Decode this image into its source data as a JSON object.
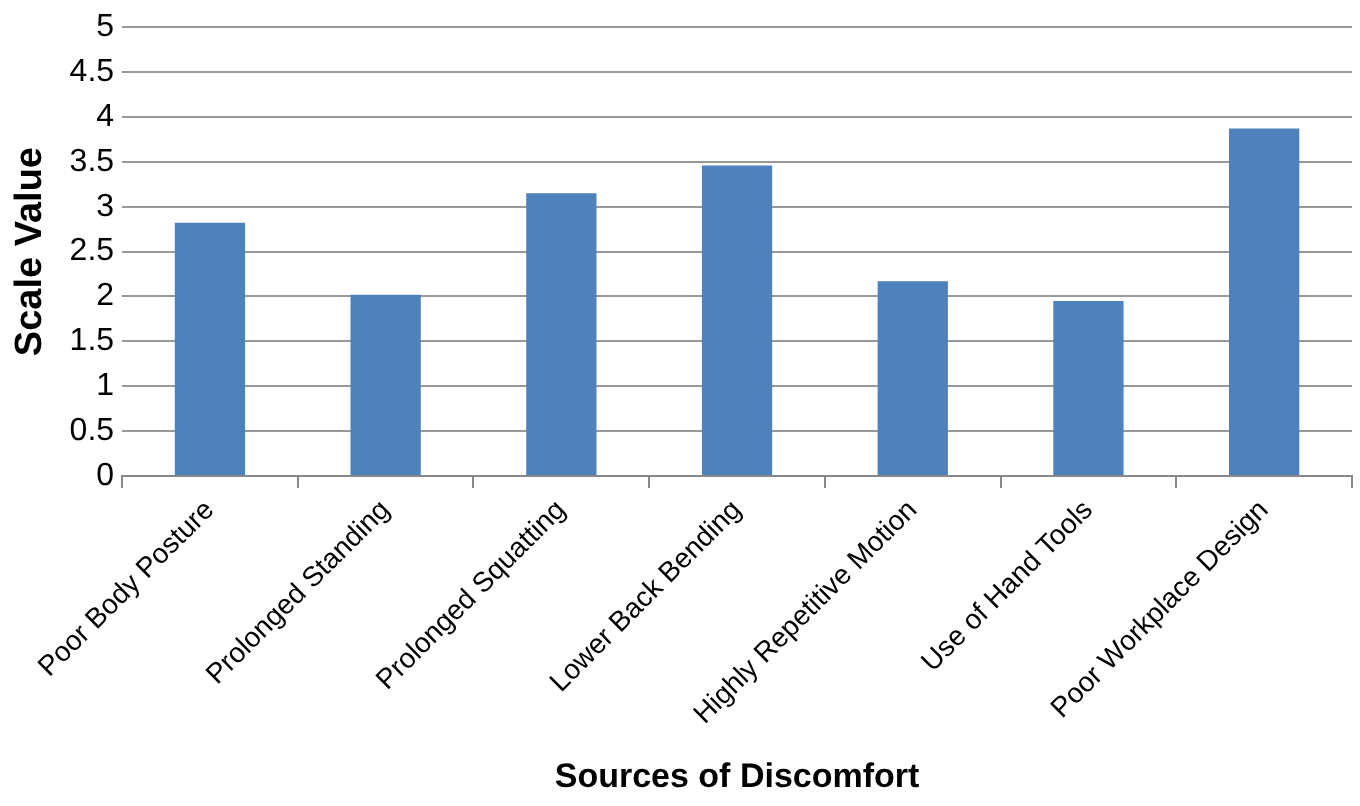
{
  "chart_data": {
    "type": "bar",
    "xlabel": "Sources of Discomfort",
    "ylabel": "Scale Value",
    "categories": [
      "Poor Body Posture",
      "Prolonged Standing",
      "Prolonged Squatting",
      "Lower Back Bending",
      "Highly Repetitive Motion",
      "Use of Hand Tools",
      "Poor Workplace Design"
    ],
    "values": [
      2.82,
      2.02,
      3.15,
      3.46,
      2.17,
      1.95,
      3.87
    ],
    "color": "#4f81bd",
    "ylim": [
      0,
      5
    ],
    "yticks": [
      0,
      0.5,
      1,
      1.5,
      2,
      2.5,
      3,
      3.5,
      4,
      4.5,
      5
    ],
    "grid": "y",
    "legend": false
  }
}
